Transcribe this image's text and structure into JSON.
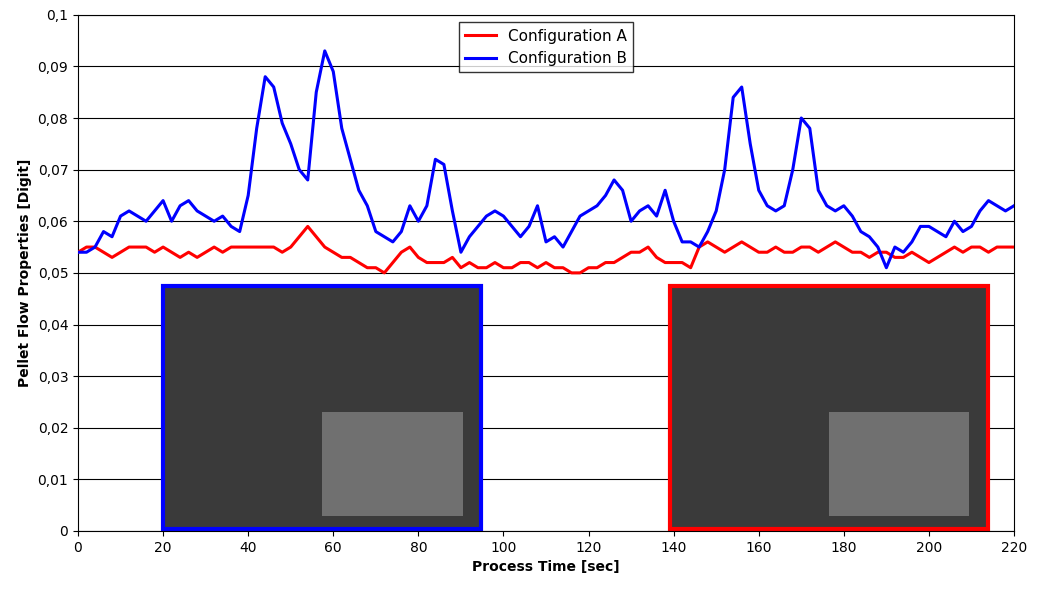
{
  "chart_data": {
    "type": "line",
    "x_label": "Process Time [sec]",
    "y_label": "Pellet Flow Properties [Digit]",
    "x": [
      0,
      2,
      4,
      6,
      8,
      10,
      12,
      14,
      16,
      18,
      20,
      22,
      24,
      26,
      28,
      30,
      32,
      34,
      36,
      38,
      40,
      42,
      44,
      46,
      48,
      50,
      52,
      54,
      56,
      58,
      60,
      62,
      64,
      66,
      68,
      70,
      72,
      74,
      76,
      78,
      80,
      82,
      84,
      86,
      88,
      90,
      92,
      94,
      96,
      98,
      100,
      102,
      104,
      106,
      108,
      110,
      112,
      114,
      116,
      118,
      120,
      122,
      124,
      126,
      128,
      130,
      132,
      134,
      136,
      138,
      140,
      142,
      144,
      146,
      148,
      150,
      152,
      154,
      156,
      158,
      160,
      162,
      164,
      166,
      168,
      170,
      172,
      174,
      176,
      178,
      180,
      182,
      184,
      186,
      188,
      190,
      192,
      194,
      196,
      198,
      200,
      202,
      204,
      206,
      208,
      210,
      212,
      214,
      216,
      218,
      220
    ],
    "series": [
      {
        "name": "Configuration A",
        "color": "#ff0000",
        "values": [
          0.054,
          0.055,
          0.055,
          0.054,
          0.053,
          0.054,
          0.055,
          0.055,
          0.055,
          0.054,
          0.055,
          0.054,
          0.053,
          0.054,
          0.053,
          0.054,
          0.055,
          0.054,
          0.055,
          0.055,
          0.055,
          0.055,
          0.055,
          0.055,
          0.054,
          0.055,
          0.057,
          0.059,
          0.057,
          0.055,
          0.054,
          0.053,
          0.053,
          0.052,
          0.051,
          0.051,
          0.05,
          0.052,
          0.054,
          0.055,
          0.053,
          0.052,
          0.052,
          0.052,
          0.053,
          0.051,
          0.052,
          0.051,
          0.051,
          0.052,
          0.051,
          0.051,
          0.052,
          0.052,
          0.051,
          0.052,
          0.051,
          0.051,
          0.05,
          0.05,
          0.051,
          0.051,
          0.052,
          0.052,
          0.053,
          0.054,
          0.054,
          0.055,
          0.053,
          0.052,
          0.052,
          0.052,
          0.051,
          0.055,
          0.056,
          0.055,
          0.054,
          0.055,
          0.056,
          0.055,
          0.054,
          0.054,
          0.055,
          0.054,
          0.054,
          0.055,
          0.055,
          0.054,
          0.055,
          0.056,
          0.055,
          0.054,
          0.054,
          0.053,
          0.054,
          0.054,
          0.053,
          0.053,
          0.054,
          0.053,
          0.052,
          0.053,
          0.054,
          0.055,
          0.054,
          0.055,
          0.055,
          0.054,
          0.055,
          0.055,
          0.055
        ]
      },
      {
        "name": "Configuration B",
        "color": "#0000ff",
        "values": [
          0.054,
          0.054,
          0.055,
          0.058,
          0.057,
          0.061,
          0.062,
          0.061,
          0.06,
          0.062,
          0.064,
          0.06,
          0.063,
          0.064,
          0.062,
          0.061,
          0.06,
          0.061,
          0.059,
          0.058,
          0.065,
          0.078,
          0.088,
          0.086,
          0.079,
          0.075,
          0.07,
          0.068,
          0.085,
          0.093,
          0.089,
          0.078,
          0.072,
          0.066,
          0.063,
          0.058,
          0.057,
          0.056,
          0.058,
          0.063,
          0.06,
          0.063,
          0.072,
          0.071,
          0.062,
          0.054,
          0.057,
          0.059,
          0.061,
          0.062,
          0.061,
          0.059,
          0.057,
          0.059,
          0.063,
          0.056,
          0.057,
          0.055,
          0.058,
          0.061,
          0.062,
          0.063,
          0.065,
          0.068,
          0.066,
          0.06,
          0.062,
          0.063,
          0.061,
          0.066,
          0.06,
          0.056,
          0.056,
          0.055,
          0.058,
          0.062,
          0.07,
          0.084,
          0.086,
          0.075,
          0.066,
          0.063,
          0.062,
          0.063,
          0.07,
          0.08,
          0.078,
          0.066,
          0.063,
          0.062,
          0.063,
          0.061,
          0.058,
          0.057,
          0.055,
          0.051,
          0.055,
          0.054,
          0.056,
          0.059,
          0.059,
          0.058,
          0.057,
          0.06,
          0.058,
          0.059,
          0.062,
          0.064,
          0.063,
          0.062,
          0.063
        ]
      }
    ],
    "xlim": [
      0,
      220
    ],
    "xticks": [
      0,
      20,
      40,
      60,
      80,
      100,
      120,
      140,
      160,
      180,
      200,
      220
    ],
    "ylim": [
      0,
      0.1
    ],
    "yticks": [
      {
        "value": 0,
        "label": "0"
      },
      {
        "value": 0.01,
        "label": "0,01"
      },
      {
        "value": 0.02,
        "label": "0,02"
      },
      {
        "value": 0.03,
        "label": "0,03"
      },
      {
        "value": 0.04,
        "label": "0,04"
      },
      {
        "value": 0.05,
        "label": "0,05"
      },
      {
        "value": 0.06,
        "label": "0,06"
      },
      {
        "value": 0.07,
        "label": "0,07"
      },
      {
        "value": 0.08,
        "label": "0,08"
      },
      {
        "value": 0.09,
        "label": "0,09"
      },
      {
        "value": 0.1,
        "label": "0,1"
      }
    ],
    "grid": "y",
    "legend": "upper center"
  }
}
